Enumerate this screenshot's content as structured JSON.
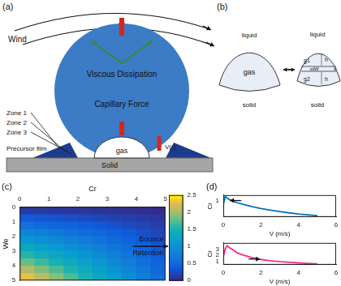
{
  "panels": {
    "a": {
      "label": "(a)",
      "wind": "Wind",
      "viscous": "Viscous Dissipation",
      "capillary": "Capillary Force",
      "zones": [
        "Zone 1",
        "Zone 2",
        "Zone 3"
      ],
      "precursor": "Precursor film",
      "gas": "gas",
      "velocity": "V(r)",
      "solid": "Solid"
    },
    "b": {
      "label": "(b)",
      "left": {
        "liquid": "liquid",
        "gas": "gas",
        "solid": "solid"
      },
      "right": {
        "liquid": "liquid",
        "g1": "g1",
        "g2": "g2",
        "h": "h",
        "d": "d",
        "vdw": "vdW",
        "solid": "solid"
      }
    },
    "c": {
      "label": "(c)"
    },
    "d": {
      "label": "(d)"
    }
  },
  "chart_data": [
    {
      "type": "heatmap",
      "x_label": "Cr",
      "y_label": "We",
      "x": [
        0.25,
        0.75,
        1.25,
        1.75,
        2.25,
        2.75,
        3.25,
        3.75,
        4.25,
        4.75
      ],
      "y": [
        0.25,
        0.75,
        1.25,
        1.75,
        2.25,
        2.75,
        3.25,
        3.75,
        4.25,
        4.75
      ],
      "cells": [
        [
          0.12,
          0.11,
          0.1,
          0.09,
          0.08,
          0.07,
          0.06,
          0.05,
          0.04,
          0.03
        ],
        [
          0.36,
          0.33,
          0.3,
          0.27,
          0.24,
          0.21,
          0.18,
          0.15,
          0.12,
          0.09
        ],
        [
          0.6,
          0.55,
          0.5,
          0.45,
          0.4,
          0.35,
          0.3,
          0.25,
          0.2,
          0.15
        ],
        [
          0.84,
          0.77,
          0.7,
          0.63,
          0.56,
          0.49,
          0.42,
          0.35,
          0.28,
          0.21
        ],
        [
          1.08,
          0.99,
          0.9,
          0.81,
          0.72,
          0.63,
          0.54,
          0.45,
          0.36,
          0.27
        ],
        [
          1.32,
          1.21,
          1.1,
          0.99,
          0.88,
          0.77,
          0.66,
          0.55,
          0.44,
          0.33
        ],
        [
          1.56,
          1.43,
          1.3,
          1.17,
          1.04,
          0.91,
          0.78,
          0.65,
          0.52,
          0.39
        ],
        [
          1.8,
          1.65,
          1.5,
          1.35,
          1.2,
          1.05,
          0.9,
          0.75,
          0.6,
          0.45
        ],
        [
          2.04,
          1.87,
          1.7,
          1.53,
          1.36,
          1.19,
          1.02,
          0.85,
          0.68,
          0.51
        ],
        [
          2.28,
          2.09,
          1.9,
          1.71,
          1.52,
          1.33,
          1.14,
          0.95,
          0.76,
          0.57
        ]
      ],
      "xlim": [
        0,
        5
      ],
      "xticks": [
        0,
        1,
        2,
        3,
        4,
        5
      ],
      "ylim": [
        5,
        0
      ],
      "yticks": [
        0,
        1,
        2,
        3,
        4,
        5
      ],
      "colorbar": {
        "range": [
          0,
          2.5
        ],
        "ticks": [
          0,
          0.5,
          1,
          1.5,
          2,
          2.5
        ],
        "threshold": 1,
        "above": "Bounce",
        "below": "Retention"
      }
    },
    {
      "type": "line",
      "x_label": "V (m/s)",
      "y_label": "Cr",
      "color": "#0072bd",
      "x": [
        0,
        0.1,
        0.2,
        0.3,
        0.5,
        0.75,
        1,
        1.5,
        2,
        2.5,
        3,
        3.5,
        4,
        4.5,
        5
      ],
      "values": [
        0.85,
        1.15,
        1.1,
        1.05,
        0.98,
        0.92,
        0.87,
        0.78,
        0.71,
        0.65,
        0.6,
        0.55,
        0.51,
        0.48,
        0.45
      ],
      "xlim": [
        0,
        6
      ],
      "xticks": [
        0,
        2,
        4,
        6
      ],
      "ylim": [
        0.4,
        1.2
      ],
      "yticks": [
        1
      ],
      "annotations": [
        {
          "x": 0.35,
          "y": 1.0,
          "direction": "left"
        }
      ]
    },
    {
      "type": "line",
      "x_label": "V (m/s)",
      "y_label": "Cr",
      "color": "#ff2a8a",
      "x": [
        0,
        0.1,
        0.2,
        0.3,
        0.5,
        0.75,
        1,
        1.5,
        2,
        2.5,
        3,
        3.5,
        4,
        4.5,
        5
      ],
      "values": [
        1.8,
        3.0,
        3.55,
        3.3,
        2.9,
        2.4,
        2.1,
        1.65,
        1.35,
        1.15,
        1.0,
        0.9,
        0.8,
        0.72,
        0.65
      ],
      "xlim": [
        0,
        6
      ],
      "xticks": [
        0,
        2,
        4,
        6
      ],
      "ylim": [
        0.5,
        4
      ],
      "yticks": [
        1,
        2,
        3
      ],
      "annotations": [
        {
          "x": 1.95,
          "y": 1.42,
          "direction": "right"
        }
      ]
    }
  ]
}
